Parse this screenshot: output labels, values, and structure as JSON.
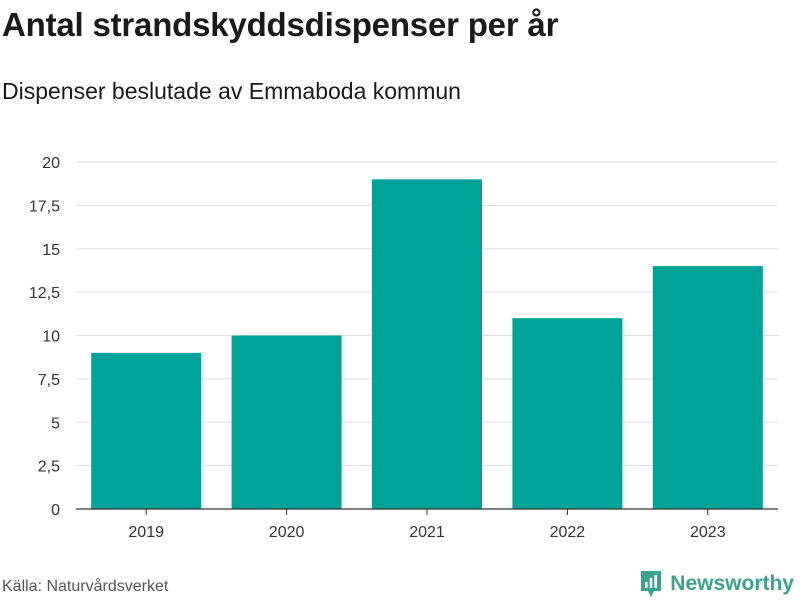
{
  "header": {
    "title": "Antal strandskyddsdispenser per år",
    "subtitle": "Dispenser beslutade av Emmaboda kommun"
  },
  "footer": {
    "source": "Källa: Naturvårdsverket",
    "brand": "Newsworthy"
  },
  "colors": {
    "bar": "#00a398",
    "grid": "#dddddd",
    "axis": "#333333",
    "brand": "#3aa38f"
  },
  "chart_data": {
    "type": "bar",
    "categories": [
      "2019",
      "2020",
      "2021",
      "2022",
      "2023"
    ],
    "values": [
      9,
      10,
      19,
      11,
      14
    ],
    "ylim": [
      0,
      20
    ],
    "yticks": [
      0,
      2.5,
      5,
      7.5,
      10,
      12.5,
      15,
      17.5,
      20
    ],
    "ytick_labels": [
      "0",
      "2,5",
      "5",
      "7,5",
      "10",
      "12,5",
      "15",
      "17,5",
      "20"
    ],
    "grid": true,
    "legend": "none"
  }
}
